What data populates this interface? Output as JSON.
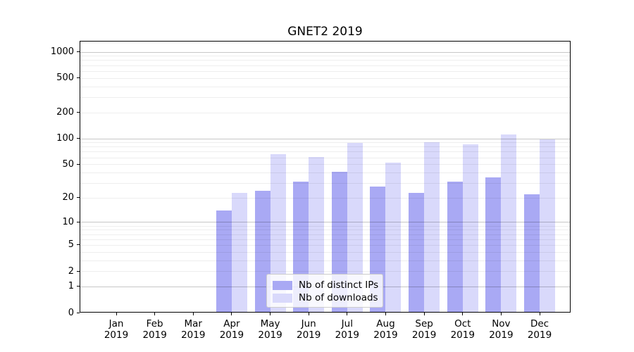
{
  "title": "GNET2 2019",
  "chart_data": {
    "type": "bar",
    "title": "GNET2 2019",
    "categories": [
      "Jan",
      "Feb",
      "Mar",
      "Apr",
      "May",
      "Jun",
      "Jul",
      "Aug",
      "Sep",
      "Oct",
      "Nov",
      "Dec"
    ],
    "category_year": "2019",
    "series": [
      {
        "name": "Nb of distinct IPs",
        "color": "#a9a9f4",
        "values": [
          0,
          0,
          0,
          14,
          24,
          31,
          41,
          27,
          23,
          31,
          35,
          22
        ]
      },
      {
        "name": "Nb of downloads",
        "color": "#d9d9fb",
        "values": [
          0,
          0,
          0,
          23,
          66,
          61,
          89,
          52,
          90,
          85,
          110,
          97
        ]
      }
    ],
    "xlabel": "",
    "ylabel": "",
    "yscale": "log1p",
    "ylim": [
      0,
      1335
    ],
    "y_ticks": [
      0,
      1,
      2,
      5,
      10,
      20,
      50,
      100,
      200,
      500,
      1000
    ],
    "y_major_grid": [
      1,
      10,
      100,
      1000
    ],
    "y_minor_grid": [
      2,
      3,
      4,
      5,
      6,
      7,
      8,
      9,
      20,
      30,
      40,
      50,
      60,
      70,
      80,
      90,
      200,
      300,
      400,
      500,
      600,
      700,
      800,
      900
    ],
    "grid": "on",
    "legend_position": "lower center"
  }
}
